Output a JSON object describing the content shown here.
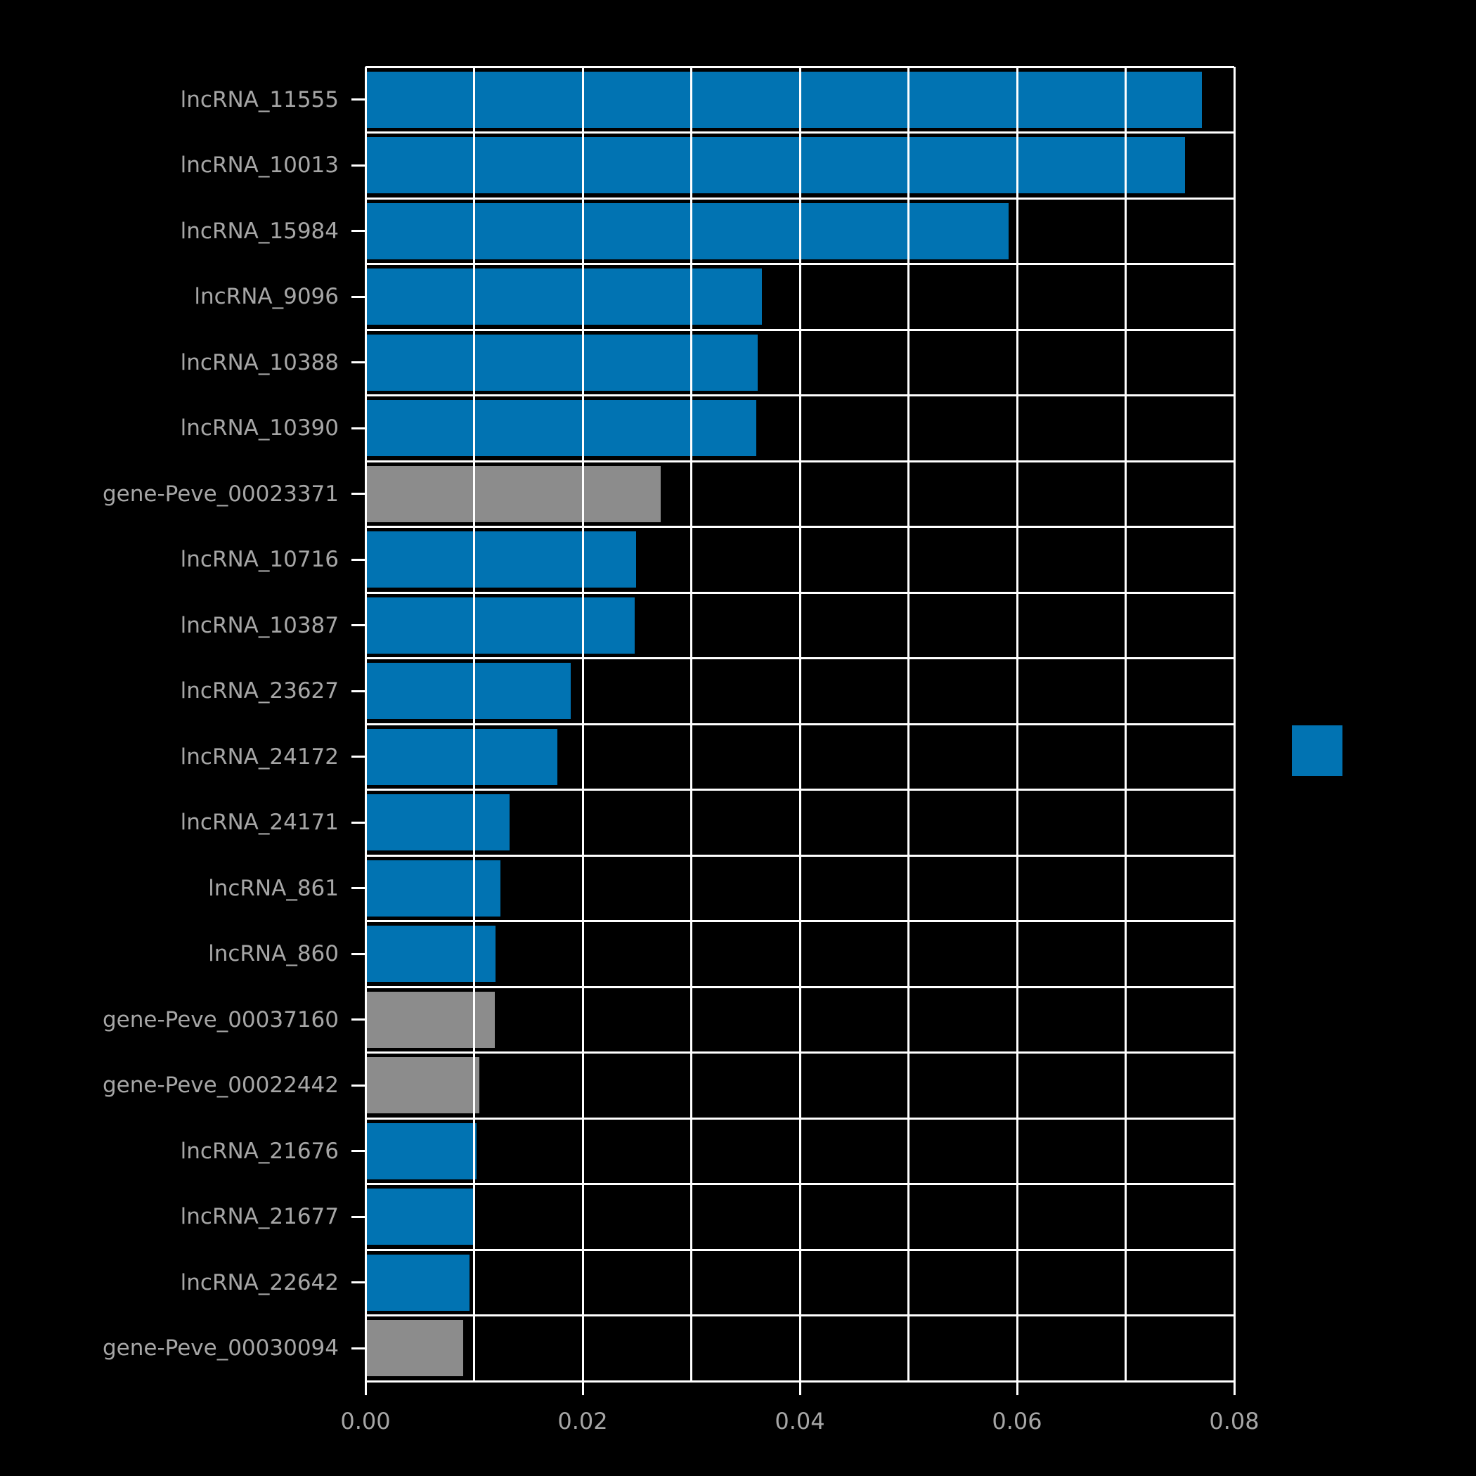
{
  "chart_data": {
    "type": "bar",
    "orientation": "horizontal",
    "title": "",
    "xlabel": "",
    "ylabel": "",
    "xlim": [
      0,
      0.08
    ],
    "grid": true,
    "grid_color": "#ffffff",
    "grid_x_interval": 0.01,
    "background_color": "#000000",
    "tick_label_color": "#a6a6a6",
    "xticks": [
      0,
      0.02,
      0.04,
      0.06,
      0.08
    ],
    "xticklabels": [
      "0.00",
      "0.02",
      "0.04",
      "0.06",
      "0.08"
    ],
    "palette": {
      "lncRNA_color": "#0173b2",
      "gene_color": "#8c8c8c"
    },
    "categories": [
      "lncRNA_11555",
      "lncRNA_10013",
      "lncRNA_15984",
      "lncRNA_9096",
      "lncRNA_10388",
      "lncRNA_10390",
      "gene-Peve_00023371",
      "lncRNA_10716",
      "lncRNA_10387",
      "lncRNA_23627",
      "lncRNA_24172",
      "lncRNA_24171",
      "lncRNA_861",
      "lncRNA_860",
      "gene-Peve_00037160",
      "gene-Peve_00022442",
      "lncRNA_21676",
      "lncRNA_21677",
      "lncRNA_22642",
      "gene-Peve_00030094"
    ],
    "values": [
      0.077,
      0.0755,
      0.0592,
      0.0365,
      0.0361,
      0.036,
      0.0272,
      0.0249,
      0.0248,
      0.0189,
      0.0177,
      0.0133,
      0.0124,
      0.012,
      0.0119,
      0.0105,
      0.0102,
      0.0101,
      0.0096,
      0.009
    ],
    "bar_colors": [
      "#0173b2",
      "#0173b2",
      "#0173b2",
      "#0173b2",
      "#0173b2",
      "#0173b2",
      "#8c8c8c",
      "#0173b2",
      "#0173b2",
      "#0173b2",
      "#0173b2",
      "#0173b2",
      "#0173b2",
      "#0173b2",
      "#8c8c8c",
      "#8c8c8c",
      "#0173b2",
      "#0173b2",
      "#0173b2",
      "#8c8c8c"
    ],
    "legend": {
      "position": "right",
      "swatches": [
        {
          "color": "#0173b2",
          "label": ""
        }
      ]
    }
  }
}
